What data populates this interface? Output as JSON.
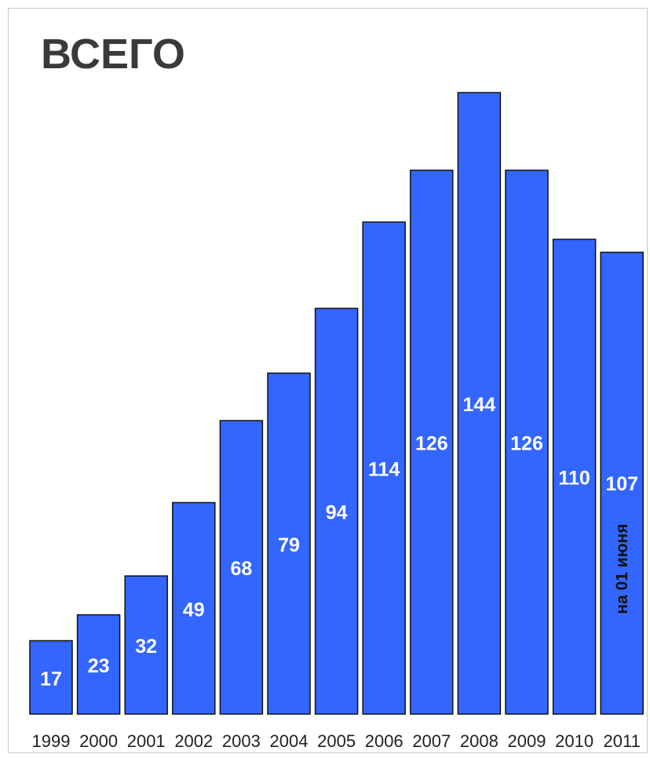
{
  "chart_data": {
    "type": "bar",
    "title": "ВСЕГО",
    "categories": [
      "1999",
      "2000",
      "2001",
      "2002",
      "2003",
      "2004",
      "2005",
      "2006",
      "2007",
      "2008",
      "2009",
      "2010",
      "2011"
    ],
    "values": [
      17,
      23,
      32,
      49,
      68,
      79,
      94,
      114,
      126,
      144,
      126,
      110,
      107
    ],
    "series_color": "#3366ff",
    "data_label_color": "#ffffff",
    "annotation": {
      "category": "2011",
      "text": "на 01 июня",
      "color": "#111111"
    },
    "xlabel": "",
    "ylabel": "",
    "ylim": [
      0,
      144
    ],
    "grid": false,
    "legend": "none"
  }
}
